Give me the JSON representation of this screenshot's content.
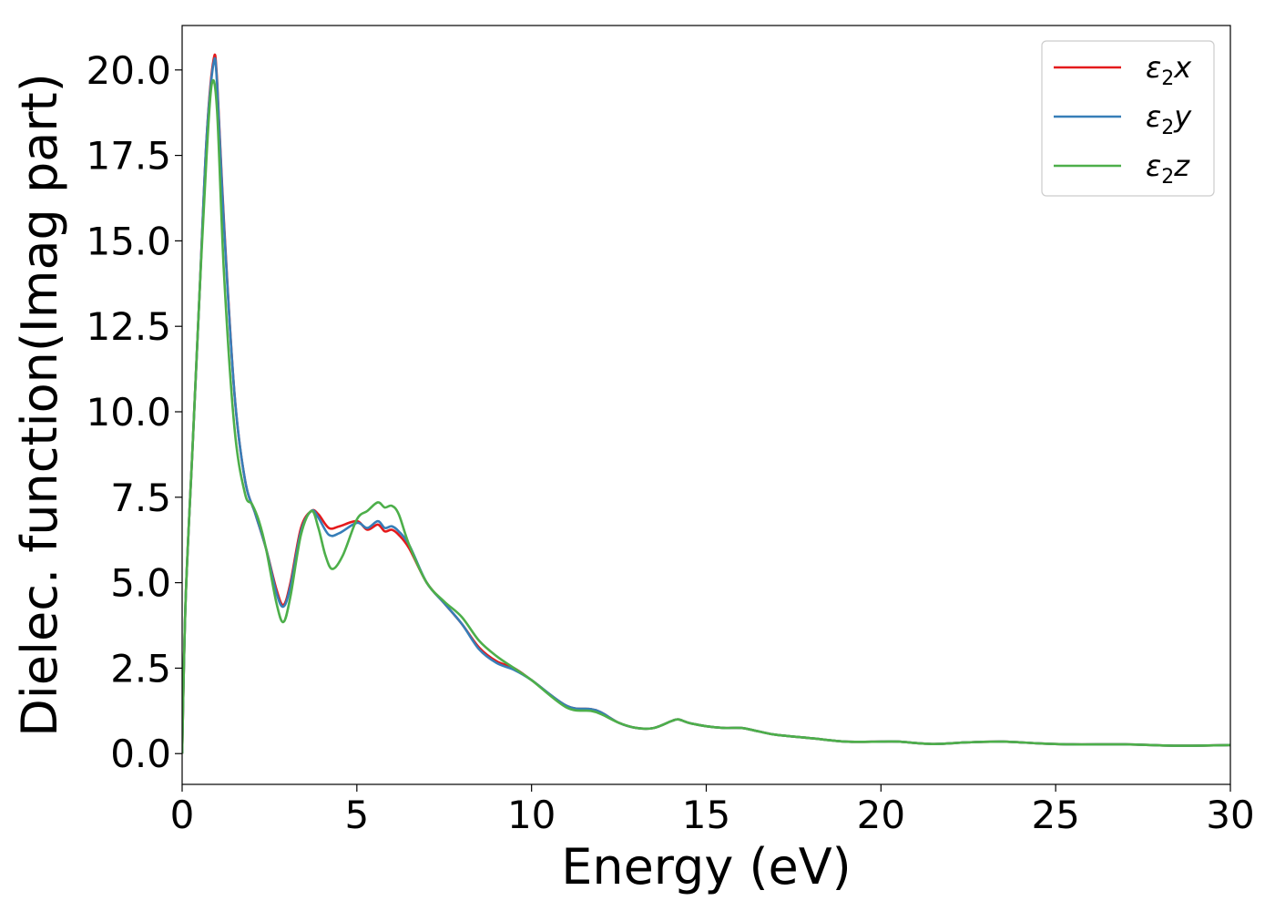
{
  "chart_data": {
    "type": "line",
    "xlabel": "Energy (eV)",
    "ylabel": "Dielec. function(Imag part)",
    "xlim": [
      0,
      30
    ],
    "ylim": [
      -0.9,
      21.3
    ],
    "xticks": [
      0,
      5,
      10,
      15,
      20,
      25,
      30
    ],
    "xtick_labels": [
      "0",
      "5",
      "10",
      "15",
      "20",
      "25",
      "30"
    ],
    "yticks": [
      0.0,
      2.5,
      5.0,
      7.5,
      10.0,
      12.5,
      15.0,
      17.5,
      20.0
    ],
    "ytick_labels": [
      "0.0",
      "2.5",
      "5.0",
      "7.5",
      "10.0",
      "12.5",
      "15.0",
      "17.5",
      "20.0"
    ],
    "grid": false,
    "legend_position": "top-right",
    "series": [
      {
        "name": "ε₂x",
        "legend_base": "ε",
        "legend_sub": "2",
        "legend_suffix": "x",
        "color": "#e41a1c",
        "x": [
          0,
          0.1,
          0.3,
          0.5,
          0.7,
          0.9,
          1.0,
          1.2,
          1.5,
          1.8,
          2.1,
          2.4,
          2.7,
          2.9,
          3.1,
          3.4,
          3.7,
          3.9,
          4.2,
          4.5,
          5.0,
          5.3,
          5.6,
          5.8,
          6.0,
          6.2,
          6.5,
          7.0,
          7.5,
          8.0,
          8.5,
          9.0,
          9.5,
          10.0,
          11.0,
          11.7,
          12.0,
          12.5,
          13.0,
          13.5,
          14.0,
          14.2,
          14.5,
          15.0,
          15.5,
          16.0,
          16.5,
          17.0,
          18.0,
          19.0,
          20.0,
          20.5,
          21.5,
          22.5,
          23.5,
          24.5,
          25.5,
          27.0,
          28.5,
          30.0
        ],
        "y": [
          0.0,
          4.5,
          9.0,
          13.5,
          18.0,
          20.3,
          19.7,
          15.5,
          10.5,
          8.0,
          7.0,
          6.0,
          4.8,
          4.35,
          5.0,
          6.6,
          7.1,
          7.0,
          6.6,
          6.65,
          6.8,
          6.55,
          6.7,
          6.5,
          6.55,
          6.4,
          6.0,
          5.0,
          4.4,
          3.8,
          3.1,
          2.7,
          2.5,
          2.15,
          1.4,
          1.3,
          1.2,
          0.9,
          0.75,
          0.75,
          0.95,
          1.0,
          0.9,
          0.8,
          0.75,
          0.75,
          0.65,
          0.55,
          0.45,
          0.35,
          0.35,
          0.35,
          0.28,
          0.33,
          0.35,
          0.3,
          0.27,
          0.27,
          0.23,
          0.25
        ]
      },
      {
        "name": "ε₂y",
        "legend_base": "ε",
        "legend_sub": "2",
        "legend_suffix": "y",
        "color": "#377eb8",
        "x": [
          0,
          0.1,
          0.3,
          0.5,
          0.7,
          0.9,
          1.0,
          1.2,
          1.5,
          1.8,
          2.1,
          2.4,
          2.7,
          2.9,
          3.1,
          3.4,
          3.7,
          3.9,
          4.2,
          4.5,
          5.0,
          5.3,
          5.6,
          5.8,
          6.0,
          6.2,
          6.5,
          7.0,
          7.5,
          8.0,
          8.5,
          9.0,
          9.5,
          10.0,
          11.0,
          11.7,
          12.0,
          12.5,
          13.0,
          13.5,
          14.0,
          14.2,
          14.5,
          15.0,
          15.5,
          16.0,
          16.5,
          17.0,
          18.0,
          19.0,
          20.0,
          20.5,
          21.5,
          22.5,
          23.5,
          24.5,
          25.5,
          27.0,
          28.5,
          30.0
        ],
        "y": [
          0.0,
          4.5,
          9.0,
          13.5,
          18.0,
          20.2,
          19.6,
          15.4,
          10.5,
          8.0,
          7.0,
          6.0,
          4.7,
          4.3,
          4.9,
          6.5,
          7.1,
          6.9,
          6.4,
          6.45,
          6.75,
          6.6,
          6.8,
          6.6,
          6.65,
          6.5,
          6.1,
          5.0,
          4.4,
          3.8,
          3.05,
          2.65,
          2.45,
          2.15,
          1.4,
          1.3,
          1.2,
          0.9,
          0.75,
          0.75,
          0.95,
          1.0,
          0.9,
          0.8,
          0.75,
          0.75,
          0.65,
          0.55,
          0.45,
          0.35,
          0.35,
          0.35,
          0.28,
          0.33,
          0.35,
          0.3,
          0.27,
          0.27,
          0.23,
          0.25
        ]
      },
      {
        "name": "ε₂z",
        "legend_base": "ε",
        "legend_sub": "2",
        "legend_suffix": "z",
        "color": "#4daf4a",
        "x": [
          0,
          0.1,
          0.3,
          0.5,
          0.7,
          0.85,
          1.0,
          1.2,
          1.5,
          1.8,
          2.0,
          2.2,
          2.4,
          2.7,
          2.9,
          3.1,
          3.4,
          3.7,
          3.9,
          4.1,
          4.3,
          4.6,
          5.0,
          5.3,
          5.6,
          5.8,
          6.0,
          6.2,
          6.5,
          7.0,
          7.5,
          8.0,
          8.5,
          9.0,
          9.5,
          10.0,
          11.0,
          11.7,
          12.0,
          12.5,
          13.0,
          13.5,
          14.0,
          14.2,
          14.5,
          15.0,
          15.5,
          16.0,
          16.5,
          17.0,
          18.0,
          19.0,
          20.0,
          20.5,
          21.5,
          22.5,
          23.5,
          24.5,
          25.5,
          27.0,
          28.5,
          30.0
        ],
        "y": [
          0.0,
          4.5,
          9.0,
          13.5,
          17.5,
          19.6,
          18.8,
          14.0,
          9.5,
          7.6,
          7.3,
          6.8,
          6.0,
          4.4,
          3.85,
          4.6,
          6.4,
          7.1,
          6.6,
          5.8,
          5.4,
          5.8,
          6.85,
          7.1,
          7.35,
          7.2,
          7.25,
          7.0,
          6.1,
          5.0,
          4.45,
          4.0,
          3.3,
          2.85,
          2.5,
          2.15,
          1.35,
          1.25,
          1.15,
          0.9,
          0.75,
          0.75,
          0.95,
          1.0,
          0.9,
          0.8,
          0.75,
          0.75,
          0.65,
          0.55,
          0.45,
          0.35,
          0.35,
          0.35,
          0.28,
          0.33,
          0.35,
          0.3,
          0.27,
          0.27,
          0.23,
          0.25
        ]
      }
    ]
  }
}
